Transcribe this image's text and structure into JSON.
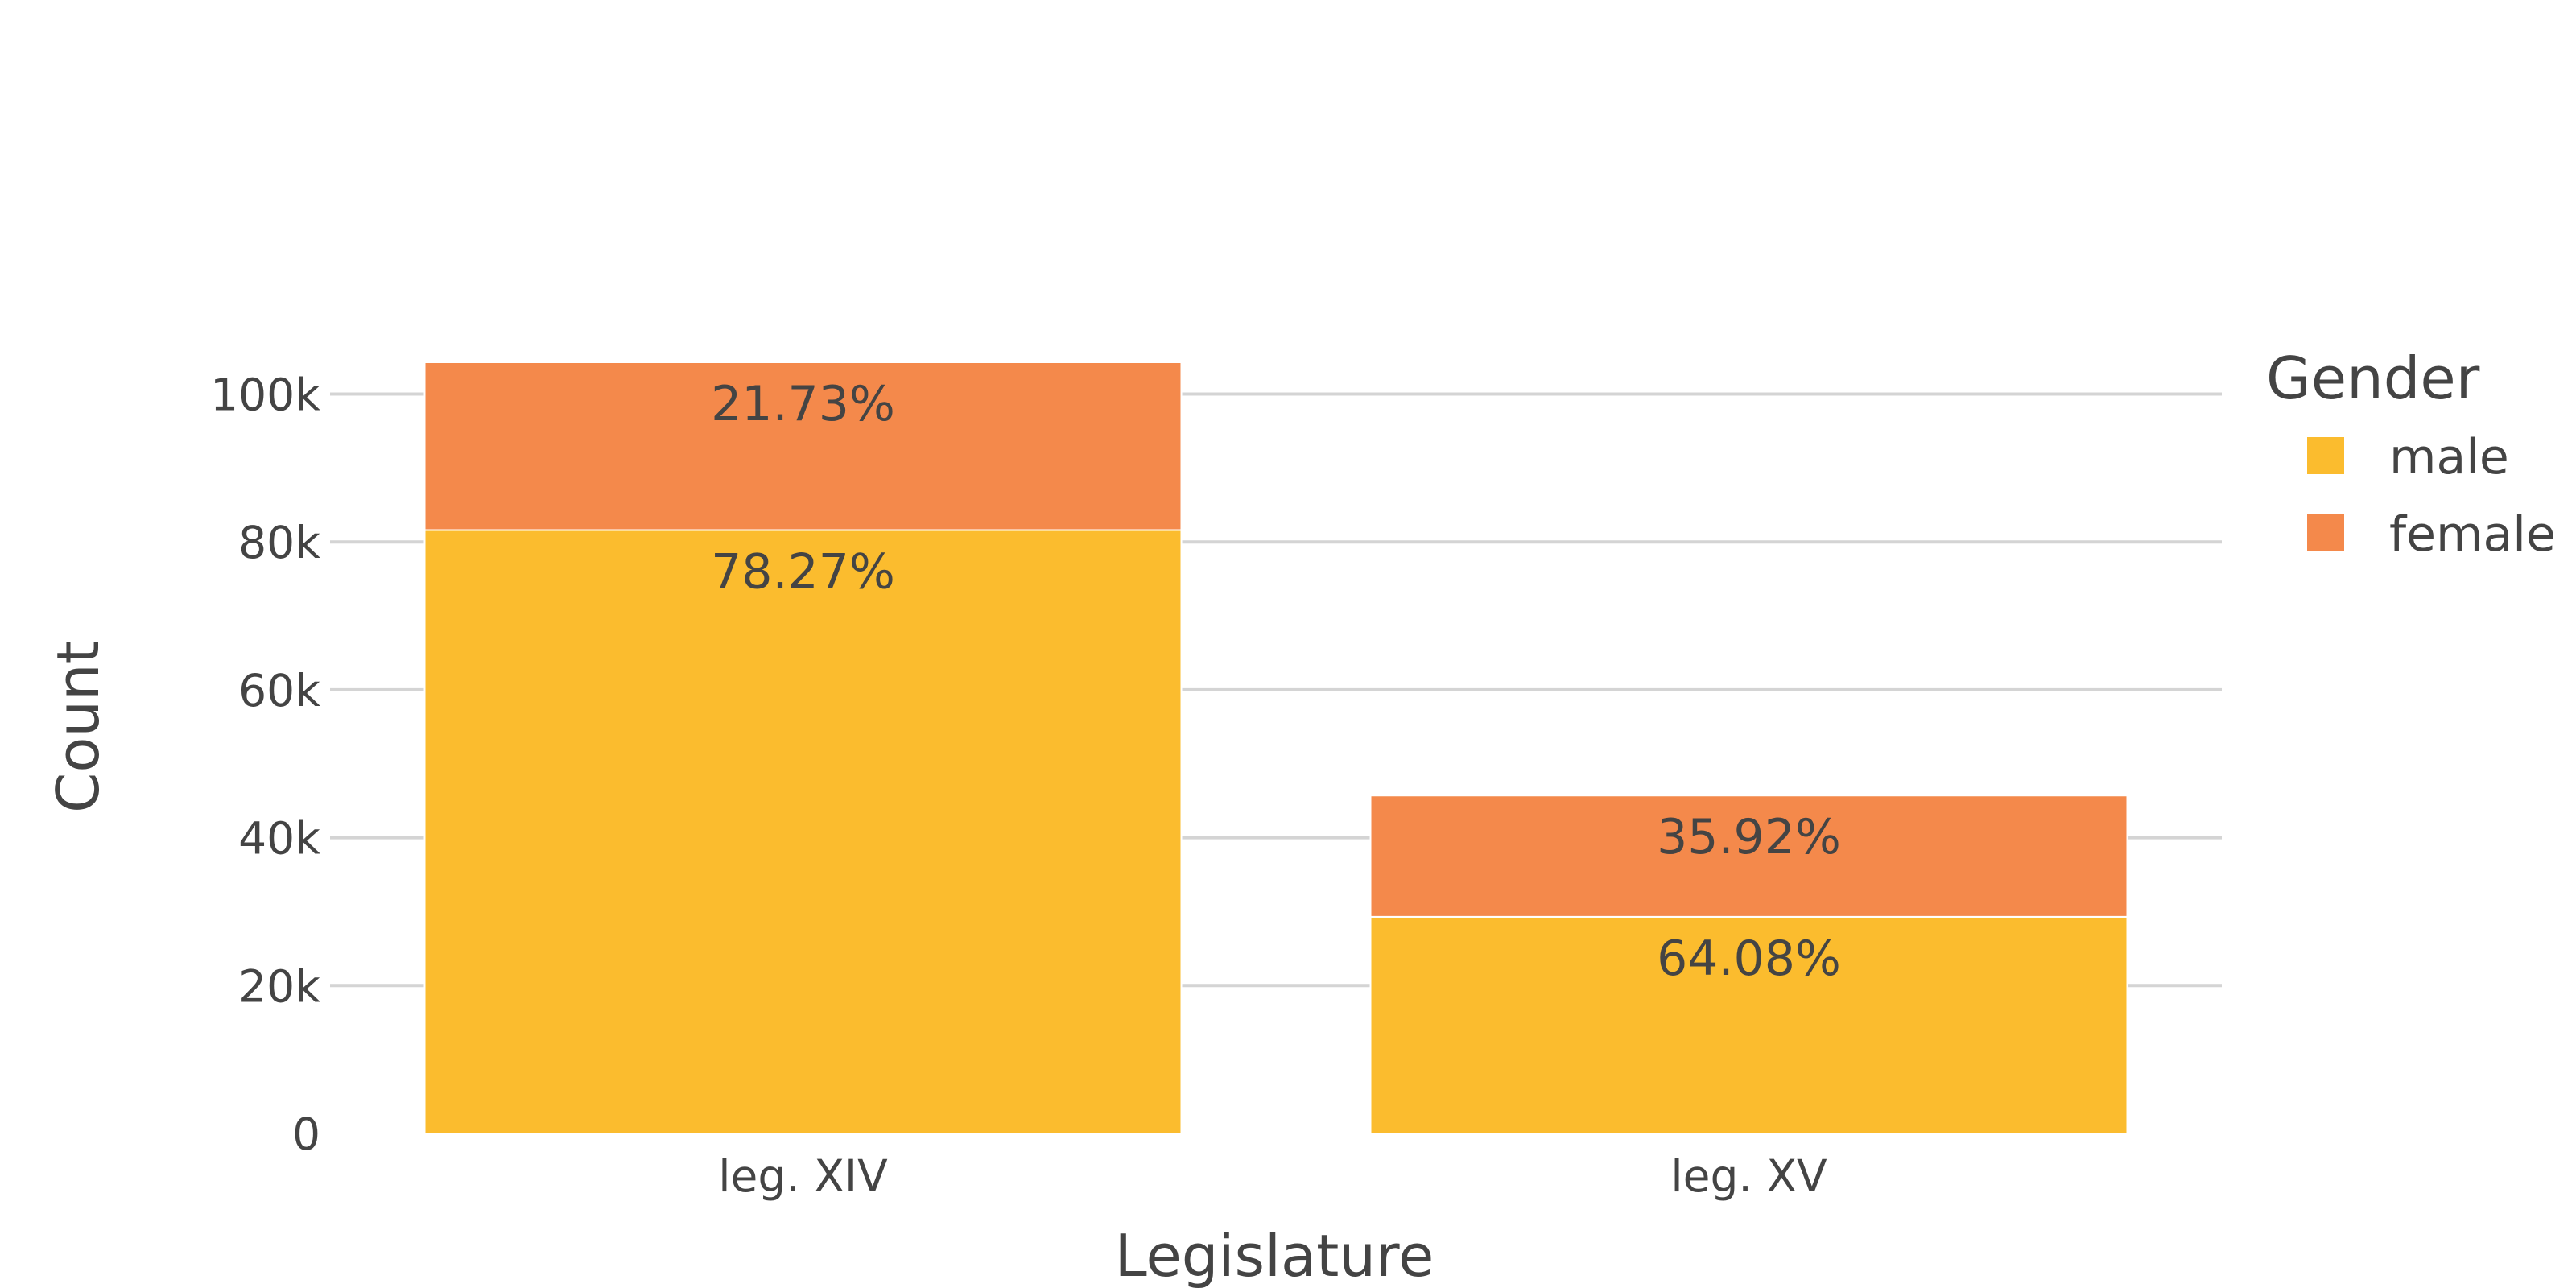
{
  "chart_data": {
    "type": "bar",
    "barmode": "stack",
    "categories": [
      "leg. XIV",
      "leg. XV"
    ],
    "series": [
      {
        "name": "male",
        "color": "#FBBC2E",
        "values": [
          81600,
          29300
        ],
        "labels": [
          "78.27%",
          "64.08%"
        ]
      },
      {
        "name": "female",
        "color": "#F4894B",
        "values": [
          22700,
          16400
        ],
        "labels": [
          "21.73%",
          "35.92%"
        ]
      }
    ],
    "xlabel": "Legislature",
    "ylabel": "Count",
    "ylim": [
      0,
      104300
    ],
    "yticks": [
      0,
      20000,
      40000,
      60000,
      80000,
      100000
    ],
    "ytick_labels": [
      "0",
      "20k",
      "40k",
      "60k",
      "80k",
      "100k"
    ],
    "legend": {
      "title": "Gender",
      "position": "top-right"
    },
    "grid": true
  }
}
